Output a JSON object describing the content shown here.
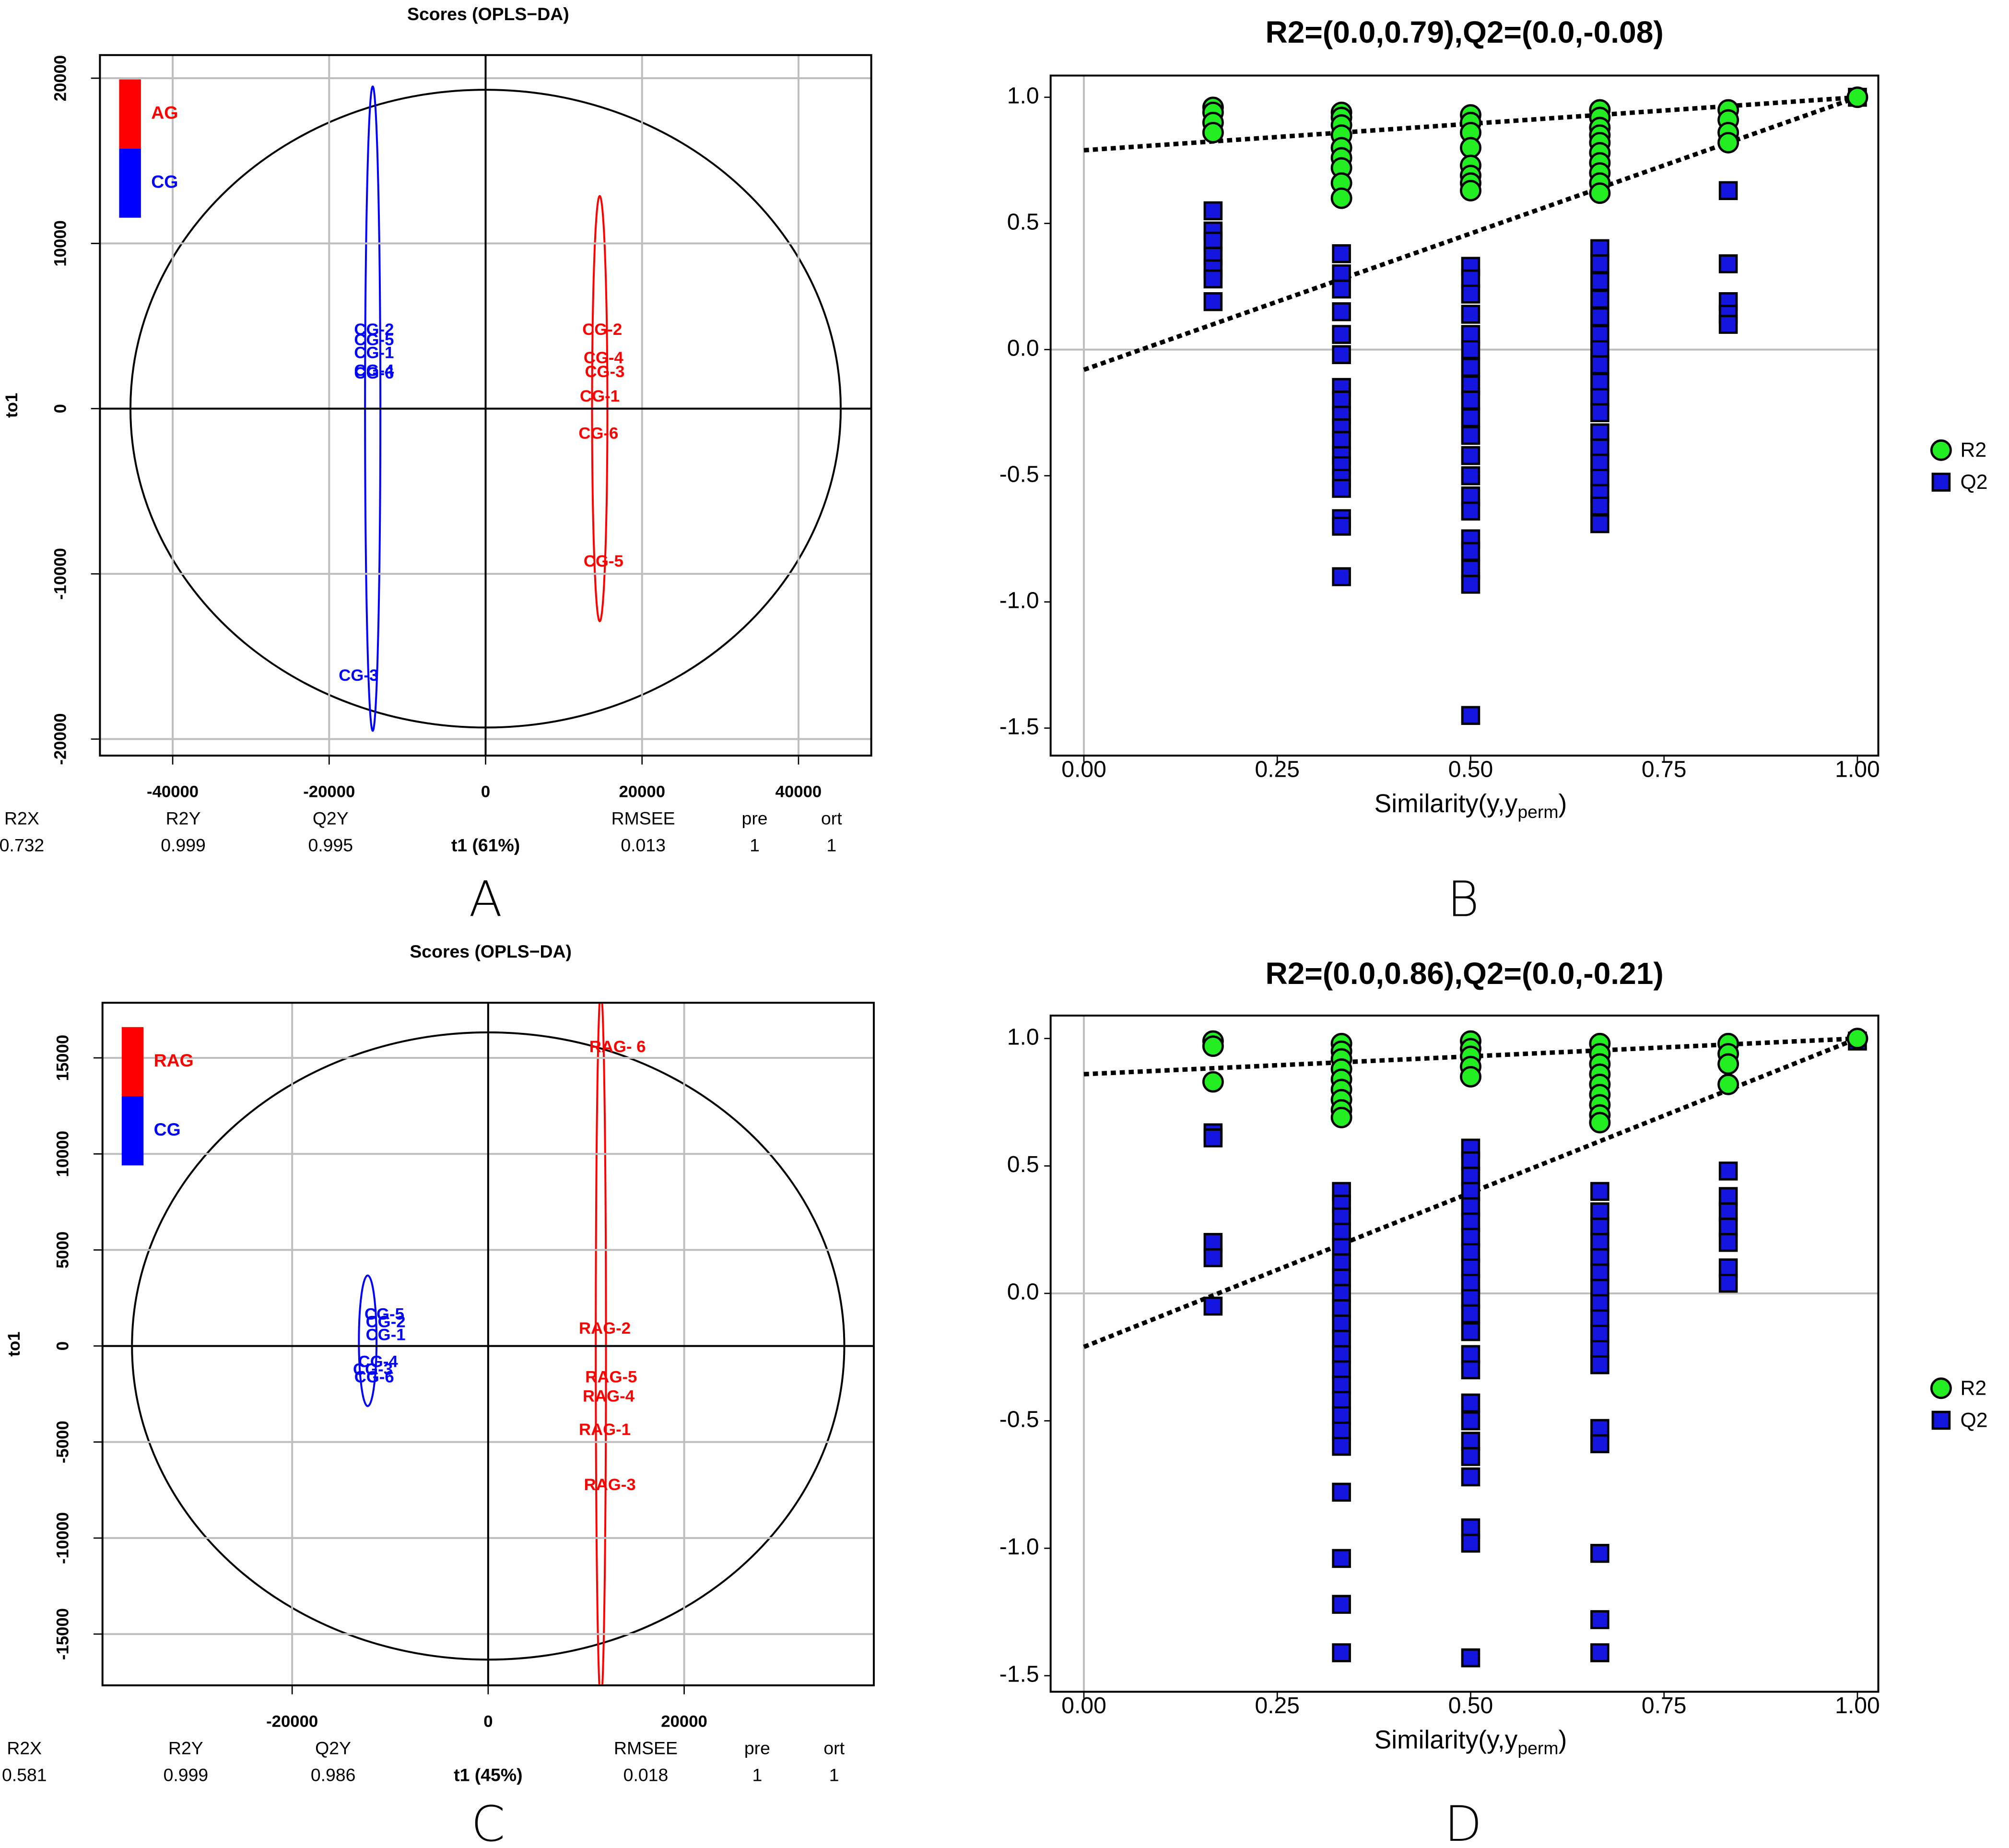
{
  "chart_data": [
    {
      "type": "scatter",
      "title": "Scores (OPLS−DA)",
      "xlabel": "t1 (61%)",
      "ylabel": "to1",
      "xlim": [
        -49300,
        49300
      ],
      "ylim": [
        -21000,
        21400
      ],
      "xticks": [
        -40000,
        -20000,
        0,
        20000,
        40000
      ],
      "yticks": [
        -20000,
        -10000,
        0,
        10000,
        20000
      ],
      "grid": true,
      "grid_color": "#bebebe",
      "zero_line_color": "#000000",
      "hotelling": {
        "rx": 45400,
        "ry": 19300
      },
      "series": [
        {
          "name": "AG",
          "color": "#ff0000",
          "labels": [
            "CG-2",
            "CG-4",
            "CG-3",
            "CG-1",
            "CG-6",
            "CG-5"
          ],
          "x": [
            14910,
            15070,
            15230,
            14590,
            14430,
            15070
          ],
          "values": [
            4730,
            3020,
            2170,
            700,
            -1550,
            -9300
          ],
          "ellipse": {
            "cx": 14590,
            "cy": 0,
            "rx": 980,
            "ry": 12870
          }
        },
        {
          "name": "CG",
          "color": "#0000ff",
          "labels": [
            "CG-2",
            "CG-5",
            "CG-1",
            "CG-4",
            "CG-6",
            "CG-3"
          ],
          "x": [
            -14260,
            -14260,
            -14260,
            -14260,
            -14260,
            -16230
          ],
          "values": [
            4730,
            4110,
            3330,
            2250,
            2090,
            -16200
          ],
          "ellipse": {
            "cx": -14430,
            "cy": 0,
            "rx": 980,
            "ry": 19500
          }
        }
      ],
      "stats": {
        "headers": [
          "R2X",
          "R2Y",
          "Q2Y",
          "RMSEE",
          "pre",
          "ort"
        ],
        "values": [
          0.732,
          0.999,
          0.995,
          0.013,
          1,
          1
        ]
      },
      "panel_label": "A"
    },
    {
      "type": "permutation",
      "title": "R2=(0.0,0.79),Q2=(0.0,-0.08)",
      "xlabel": "Similarity(y,y",
      "xlabel_sub": "perm",
      "xlabel_end": ")",
      "xlim": [
        -0.043,
        1.027
      ],
      "ylim": [
        -1.609,
        1.086
      ],
      "xticks": [
        {
          "value": 0,
          "label": "0.00"
        },
        0.25,
        {
          "value": 0.5,
          "label": "0.50"
        },
        0.75,
        {
          "value": 1,
          "label": "1.00"
        }
      ],
      "yticks": [
        -1.5,
        {
          "value": -1,
          "label": "-1.0"
        },
        -0.5,
        {
          "value": 0,
          "label": "0.0"
        },
        0.5,
        {
          "value": 1,
          "label": "1.0"
        }
      ],
      "zero_line_color": "#bebebe",
      "series": [
        {
          "name": "R2",
          "color": "#22ee22",
          "marker": "circle",
          "groups": [
            {
              "x": 0.167,
              "values": [
                0.96,
                0.94,
                0.9,
                0.86
              ]
            },
            {
              "x": 0.333,
              "values": [
                0.94,
                0.92,
                0.89,
                0.85,
                0.8,
                0.76,
                0.72,
                0.66,
                0.6
              ]
            },
            {
              "x": 0.5,
              "values": [
                0.93,
                0.9,
                0.86,
                0.8,
                0.73,
                0.69,
                0.66,
                0.63
              ]
            },
            {
              "x": 0.667,
              "values": [
                0.95,
                0.92,
                0.88,
                0.85,
                0.82,
                0.78,
                0.74,
                0.7,
                0.66,
                0.62
              ]
            },
            {
              "x": 0.833,
              "values": [
                0.95,
                0.91,
                0.86,
                0.82
              ]
            },
            {
              "x": 1,
              "values": [
                1
              ]
            }
          ]
        },
        {
          "name": "Q2",
          "color": "#1515e0",
          "marker": "square",
          "groups": [
            {
              "x": 0.167,
              "values": [
                0.55,
                0.47,
                0.43,
                0.37,
                0.32,
                0.28,
                0.19
              ]
            },
            {
              "x": 0.333,
              "values": [
                0.38,
                0.3,
                0.24,
                0.15,
                0.06,
                -0.02,
                -0.15,
                -0.2,
                -0.26,
                -0.31,
                -0.36,
                -0.42,
                -0.46,
                -0.51,
                -0.55,
                -0.67,
                -0.7,
                -0.9
              ]
            },
            {
              "x": 0.5,
              "values": [
                0.33,
                0.28,
                0.22,
                0.14,
                0.06,
                0,
                -0.07,
                -0.14,
                -0.2,
                -0.27,
                -0.34,
                -0.42,
                -0.5,
                -0.58,
                -0.64,
                -0.75,
                -0.8,
                -0.87,
                -0.93,
                -1.45
              ]
            },
            {
              "x": 0.667,
              "values": [
                0.4,
                0.34,
                0.27,
                0.2,
                0.13,
                0.06,
                0,
                -0.06,
                -0.13,
                -0.19,
                -0.25,
                -0.33,
                -0.39,
                -0.45,
                -0.51,
                -0.57,
                -0.62,
                -0.69
              ]
            },
            {
              "x": 0.833,
              "values": [
                0.63,
                0.34,
                0.19,
                0.14,
                0.1
              ]
            },
            {
              "x": 1,
              "values": [
                1
              ]
            }
          ]
        }
      ],
      "fit_lines": [
        {
          "x": [
            0,
            1
          ],
          "values": [
            0.79,
            1
          ]
        },
        {
          "x": [
            0,
            1
          ],
          "values": [
            -0.08,
            1
          ]
        }
      ],
      "legend": "right",
      "panel_label": "B"
    },
    {
      "type": "scatter",
      "title": "Scores (OPLS−DA)",
      "xlabel": "t1 (45%)",
      "ylabel": "to1",
      "xlim": [
        -39350,
        39350
      ],
      "ylim": [
        -17670,
        17870
      ],
      "xticks": [
        -20000,
        0,
        20000
      ],
      "yticks": [
        -15000,
        -10000,
        -5000,
        0,
        5000,
        10000,
        15000
      ],
      "grid": true,
      "grid_color": "#bebebe",
      "zero_line_color": "#000000",
      "hotelling": {
        "rx": 36340,
        "ry": 16330
      },
      "series": [
        {
          "name": "RAG",
          "color": "#ff0000",
          "labels": [
            "RAG- 6",
            "RAG-2",
            "RAG-5",
            "RAG-4",
            "RAG-1",
            "RAG-3"
          ],
          "x": [
            13200,
            11900,
            12550,
            12290,
            11900,
            12420
          ],
          "values": [
            15530,
            870,
            -1670,
            -2670,
            -4400,
            -7270
          ],
          "ellipse": {
            "cx": 11500,
            "cy": 0,
            "rx": 520,
            "ry": 18500
          }
        },
        {
          "name": "CG",
          "color": "#0000ff",
          "labels": [
            "CG-5",
            "CG-2",
            "CG-1",
            "CG-4",
            "CG-3",
            "CG-6"
          ],
          "x": [
            -10590,
            -10460,
            -10460,
            -11240,
            -11760,
            -11630
          ],
          "values": [
            1600,
            1200,
            530,
            -870,
            -1270,
            -1670
          ],
          "ellipse": {
            "cx": -12290,
            "cy": 270,
            "rx": 900,
            "ry": 3400
          }
        }
      ],
      "stats": {
        "headers": [
          "R2X",
          "R2Y",
          "Q2Y",
          "RMSEE",
          "pre",
          "ort"
        ],
        "values": [
          0.581,
          0.999,
          0.986,
          0.018,
          1,
          1
        ]
      },
      "panel_label": "C"
    },
    {
      "type": "permutation",
      "title": "R2=(0.0,0.86),Q2=(0.0,-0.21)",
      "xlabel": "Similarity(y,y",
      "xlabel_sub": "perm",
      "xlabel_end": ")",
      "xlim": [
        -0.043,
        1.027
      ],
      "ylim": [
        -1.563,
        1.09
      ],
      "xticks": [
        {
          "value": 0,
          "label": "0.00"
        },
        0.25,
        {
          "value": 0.5,
          "label": "0.50"
        },
        0.75,
        {
          "value": 1,
          "label": "1.00"
        }
      ],
      "yticks": [
        -1.5,
        {
          "value": -1,
          "label": "-1.0"
        },
        -0.5,
        {
          "value": 0,
          "label": "0.0"
        },
        0.5,
        {
          "value": 1,
          "label": "1.0"
        }
      ],
      "zero_line_color": "#bebebe",
      "series": [
        {
          "name": "R2",
          "color": "#22ee22",
          "marker": "circle",
          "groups": [
            {
              "x": 0.167,
              "values": [
                0.99,
                0.97,
                0.83
              ]
            },
            {
              "x": 0.333,
              "values": [
                0.98,
                0.95,
                0.92,
                0.88,
                0.84,
                0.8,
                0.76,
                0.72,
                0.69
              ]
            },
            {
              "x": 0.5,
              "values": [
                0.99,
                0.96,
                0.93,
                0.89,
                0.85
              ]
            },
            {
              "x": 0.667,
              "values": [
                0.98,
                0.94,
                0.9,
                0.86,
                0.82,
                0.78,
                0.74,
                0.7,
                0.67
              ]
            },
            {
              "x": 0.833,
              "values": [
                0.98,
                0.94,
                0.9,
                0.82
              ]
            },
            {
              "x": 1,
              "values": [
                1
              ]
            }
          ]
        },
        {
          "name": "Q2",
          "color": "#1515e0",
          "marker": "square",
          "groups": [
            {
              "x": 0.167,
              "values": [
                0.63,
                0.61,
                0.2,
                0.14,
                -0.05
              ]
            },
            {
              "x": 0.333,
              "values": [
                0.4,
                0.35,
                0.3,
                0.24,
                0.18,
                0.12,
                0.06,
                0,
                -0.06,
                -0.12,
                -0.18,
                -0.24,
                -0.3,
                -0.36,
                -0.42,
                -0.48,
                -0.54,
                -0.6,
                -0.78,
                -1.04,
                -1.22,
                -1.41
              ]
            },
            {
              "x": 0.5,
              "values": [
                0.57,
                0.52,
                0.46,
                0.4,
                0.34,
                0.28,
                0.22,
                0.16,
                0.1,
                0.04,
                -0.02,
                -0.08,
                -0.15,
                -0.24,
                -0.3,
                -0.43,
                -0.5,
                -0.58,
                -0.64,
                -0.72,
                -0.92,
                -0.98,
                -1.43
              ]
            },
            {
              "x": 0.667,
              "values": [
                0.4,
                0.32,
                0.26,
                0.2,
                0.14,
                0.08,
                0.02,
                -0.04,
                -0.1,
                -0.16,
                -0.22,
                -0.28,
                -0.53,
                -0.59,
                -1.02,
                -1.28,
                -1.41
              ]
            },
            {
              "x": 0.833,
              "values": [
                0.48,
                0.38,
                0.32,
                0.26,
                0.2,
                0.1,
                0.04
              ]
            },
            {
              "x": 1,
              "values": [
                0.99
              ]
            }
          ]
        }
      ],
      "fit_lines": [
        {
          "x": [
            0,
            1
          ],
          "values": [
            0.86,
            1
          ]
        },
        {
          "x": [
            0,
            1
          ],
          "values": [
            -0.21,
            1
          ]
        }
      ],
      "legend": "right",
      "panel_label": "D"
    }
  ]
}
